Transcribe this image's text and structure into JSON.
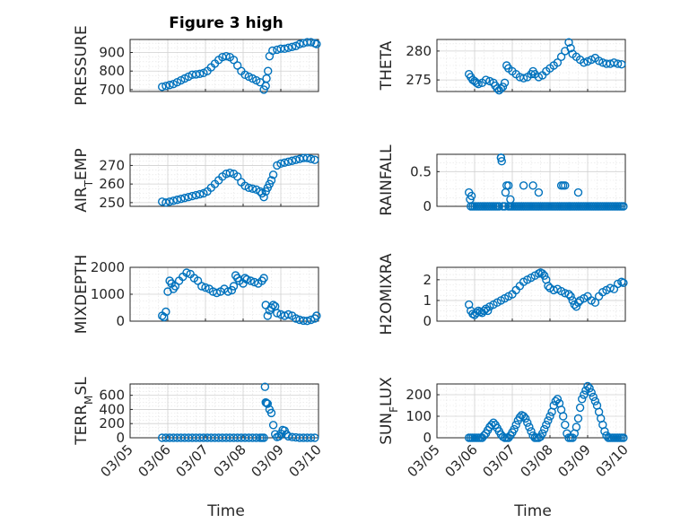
{
  "figure": {
    "title": "Figure 3 high",
    "time_label": "Time",
    "time_ticks": [
      "03/05",
      "03/06",
      "03/07",
      "03/08",
      "03/09",
      "03/10"
    ],
    "marker_color": "#0072BD"
  },
  "chart_data": [
    {
      "type": "scatter",
      "ylabel": "PRESSURE",
      "ylim": [
        690,
        970
      ],
      "yticks": [
        700,
        800,
        900
      ],
      "ytick_labels": [
        "700",
        "800",
        "900"
      ],
      "xlim": [
        0,
        5
      ],
      "x_tick_labels_shown": false,
      "x": [
        0.85,
        0.95,
        1.05,
        1.15,
        1.25,
        1.35,
        1.45,
        1.55,
        1.65,
        1.75,
        1.85,
        1.95,
        2.05,
        2.15,
        2.25,
        2.35,
        2.45,
        2.55,
        2.65,
        2.75,
        2.85,
        2.95,
        3.05,
        3.15,
        3.25,
        3.35,
        3.45,
        3.55,
        3.6,
        3.62,
        3.66,
        3.7,
        3.78,
        3.9,
        4.0,
        4.1,
        4.2,
        4.3,
        4.4,
        4.5,
        4.6,
        4.7,
        4.8,
        4.9,
        4.95
      ],
      "y": [
        715,
        720,
        725,
        730,
        740,
        750,
        760,
        770,
        780,
        782,
        785,
        790,
        800,
        820,
        840,
        860,
        875,
        880,
        875,
        860,
        830,
        800,
        780,
        770,
        760,
        750,
        740,
        700,
        720,
        760,
        800,
        880,
        910,
        915,
        920,
        920,
        925,
        930,
        935,
        945,
        950,
        955,
        955,
        950,
        945
      ]
    },
    {
      "type": "scatter",
      "ylabel": "THETA",
      "ylim": [
        273,
        282
      ],
      "yticks": [
        275,
        280
      ],
      "ytick_labels": [
        "275",
        "280"
      ],
      "xlim": [
        0,
        5
      ],
      "x_tick_labels_shown": false,
      "x": [
        0.85,
        0.9,
        0.95,
        1.0,
        1.05,
        1.1,
        1.2,
        1.3,
        1.4,
        1.5,
        1.55,
        1.6,
        1.65,
        1.7,
        1.75,
        1.8,
        1.85,
        1.9,
        2.0,
        2.1,
        2.2,
        2.3,
        2.4,
        2.5,
        2.55,
        2.6,
        2.7,
        2.8,
        2.9,
        3.0,
        3.1,
        3.2,
        3.3,
        3.4,
        3.5,
        3.55,
        3.6,
        3.7,
        3.8,
        3.9,
        4.0,
        4.1,
        4.2,
        4.3,
        4.4,
        4.5,
        4.6,
        4.7,
        4.8,
        4.9
      ],
      "y": [
        276,
        275.5,
        275,
        274.8,
        274.5,
        274.3,
        274.5,
        275,
        274.8,
        274.5,
        274,
        273.5,
        273.2,
        273.5,
        273.8,
        274.5,
        277.5,
        277,
        276.5,
        276,
        275.5,
        275.3,
        275.5,
        276,
        276.5,
        276,
        275.5,
        275.8,
        276.5,
        277,
        277.5,
        278,
        279,
        280,
        281.5,
        280.5,
        279.5,
        279,
        278.5,
        278,
        278.2,
        278.5,
        278.8,
        278.3,
        278,
        277.8,
        277.8,
        278,
        277.8,
        277.7
      ]
    },
    {
      "type": "scatter",
      "ylabel": "AIR_TEMP",
      "ylim": [
        248,
        276
      ],
      "yticks": [
        250,
        260,
        270
      ],
      "ytick_labels": [
        "250",
        "260",
        "270"
      ],
      "xlim": [
        0,
        5
      ],
      "x_tick_labels_shown": false,
      "x": [
        0.85,
        0.95,
        1.05,
        1.15,
        1.25,
        1.35,
        1.45,
        1.55,
        1.65,
        1.75,
        1.85,
        1.95,
        2.05,
        2.15,
        2.25,
        2.35,
        2.45,
        2.55,
        2.65,
        2.75,
        2.85,
        2.95,
        3.05,
        3.15,
        3.25,
        3.35,
        3.45,
        3.5,
        3.55,
        3.6,
        3.65,
        3.7,
        3.75,
        3.8,
        3.9,
        4.0,
        4.1,
        4.2,
        4.3,
        4.4,
        4.5,
        4.6,
        4.7,
        4.8,
        4.9
      ],
      "y": [
        250.5,
        250,
        250.5,
        251,
        251.5,
        252,
        252.5,
        253,
        253.5,
        254,
        254.5,
        255,
        256,
        258,
        260,
        262,
        264,
        265.5,
        266,
        265.5,
        264,
        261,
        259,
        258,
        257.5,
        257,
        256,
        255,
        253,
        256,
        258,
        260,
        262,
        265,
        270,
        271,
        271.5,
        272,
        272.5,
        273,
        273.5,
        274,
        274,
        273.5,
        273
      ]
    },
    {
      "type": "scatter",
      "ylabel": "RAINFALL",
      "ylim": [
        0,
        0.75
      ],
      "yticks": [
        0,
        0.5
      ],
      "ytick_labels": [
        "0",
        "0.5"
      ],
      "xlim": [
        0,
        5
      ],
      "x_tick_labels_shown": false,
      "x": [
        0.85,
        0.9,
        0.95,
        1.0,
        1.05,
        1.1,
        1.15,
        1.2,
        1.25,
        1.3,
        1.35,
        1.4,
        1.45,
        1.5,
        1.55,
        1.6,
        1.65,
        1.7,
        1.72,
        1.75,
        1.8,
        1.82,
        1.85,
        1.9,
        1.95,
        2.0,
        2.05,
        2.1,
        2.15,
        2.2,
        2.25,
        2.3,
        2.35,
        2.4,
        2.45,
        2.5,
        2.55,
        2.6,
        2.65,
        2.7,
        2.75,
        2.8,
        2.85,
        2.9,
        2.95,
        3.0,
        3.05,
        3.1,
        3.15,
        3.2,
        3.25,
        3.3,
        3.35,
        3.4,
        3.45,
        3.5,
        3.55,
        3.6,
        3.65,
        3.7,
        3.75,
        3.8,
        3.85,
        3.9,
        3.95,
        4.0,
        4.05,
        4.1,
        4.15,
        4.2,
        4.25,
        4.3,
        4.35,
        4.4,
        4.45,
        4.5,
        4.55,
        4.6,
        4.65,
        4.7,
        4.75,
        4.8,
        4.85,
        4.9,
        4.95,
        0.88,
        0.92,
        1.7,
        1.9,
        1.95,
        2.3,
        2.55,
        2.7,
        3.3,
        3.35,
        3.4,
        3.75
      ],
      "y": [
        0.2,
        0,
        0,
        0,
        0,
        0,
        0,
        0,
        0,
        0,
        0,
        0,
        0,
        0,
        0,
        0,
        0,
        0.7,
        0.65,
        0,
        0,
        0.2,
        0.3,
        0,
        0,
        0,
        0,
        0,
        0,
        0,
        0,
        0,
        0,
        0,
        0,
        0,
        0,
        0,
        0,
        0,
        0,
        0,
        0,
        0,
        0,
        0,
        0,
        0,
        0,
        0,
        0,
        0,
        0,
        0,
        0,
        0,
        0,
        0,
        0,
        0,
        0,
        0,
        0,
        0,
        0,
        0,
        0,
        0,
        0,
        0,
        0,
        0,
        0,
        0,
        0,
        0,
        0,
        0,
        0,
        0,
        0,
        0,
        0,
        0,
        0,
        0.1,
        0.15,
        0.7,
        0.3,
        0.1,
        0.3,
        0.3,
        0.2,
        0.3,
        0.3,
        0.3,
        0.2
      ]
    },
    {
      "type": "scatter",
      "ylabel": "MIXDEPTH",
      "ylim": [
        0,
        2000
      ],
      "yticks": [
        0,
        1000,
        2000
      ],
      "ytick_labels": [
        "0",
        "1000",
        "2000"
      ],
      "xlim": [
        0,
        5
      ],
      "x_tick_labels_shown": false,
      "x": [
        0.85,
        0.9,
        0.95,
        1.0,
        1.05,
        1.1,
        1.15,
        1.2,
        1.3,
        1.4,
        1.5,
        1.6,
        1.7,
        1.8,
        1.9,
        2.0,
        2.1,
        2.2,
        2.3,
        2.4,
        2.5,
        2.6,
        2.7,
        2.75,
        2.8,
        2.85,
        2.9,
        3.0,
        3.05,
        3.1,
        3.2,
        3.3,
        3.4,
        3.5,
        3.55,
        3.6,
        3.65,
        3.7,
        3.75,
        3.8,
        3.85,
        3.9,
        4.0,
        4.1,
        4.2,
        4.3,
        4.4,
        4.5,
        4.6,
        4.7,
        4.8,
        4.9,
        4.95
      ],
      "y": [
        200,
        150,
        350,
        1100,
        1500,
        1400,
        1200,
        1300,
        1500,
        1650,
        1800,
        1750,
        1600,
        1500,
        1300,
        1250,
        1200,
        1100,
        1050,
        1100,
        1200,
        1100,
        1150,
        1300,
        1700,
        1600,
        1500,
        1400,
        1600,
        1550,
        1500,
        1450,
        1400,
        1500,
        1600,
        600,
        200,
        400,
        500,
        600,
        550,
        300,
        250,
        200,
        250,
        200,
        100,
        50,
        20,
        10,
        50,
        100,
        200
      ]
    },
    {
      "type": "scatter",
      "ylabel": "H2OMIXRA",
      "ylim": [
        0,
        2.6
      ],
      "yticks": [
        0,
        1,
        2
      ],
      "ytick_labels": [
        "0",
        "1",
        "2"
      ],
      "xlim": [
        0,
        5
      ],
      "x_tick_labels_shown": false,
      "x": [
        0.85,
        0.9,
        0.95,
        1.0,
        1.05,
        1.1,
        1.15,
        1.2,
        1.25,
        1.3,
        1.35,
        1.4,
        1.5,
        1.6,
        1.7,
        1.8,
        1.9,
        2.0,
        2.1,
        2.2,
        2.3,
        2.4,
        2.5,
        2.6,
        2.7,
        2.75,
        2.8,
        2.85,
        2.9,
        2.95,
        3.0,
        3.1,
        3.2,
        3.3,
        3.4,
        3.5,
        3.55,
        3.6,
        3.65,
        3.7,
        3.75,
        3.8,
        3.9,
        4.0,
        4.1,
        4.2,
        4.3,
        4.4,
        4.5,
        4.6,
        4.7,
        4.8,
        4.9,
        4.95
      ],
      "y": [
        0.8,
        0.5,
        0.35,
        0.3,
        0.4,
        0.5,
        0.45,
        0.4,
        0.5,
        0.6,
        0.5,
        0.7,
        0.8,
        0.9,
        1.0,
        1.1,
        1.2,
        1.3,
        1.5,
        1.7,
        1.9,
        2.0,
        2.1,
        2.2,
        2.3,
        2.35,
        2.3,
        2.2,
        2.0,
        1.7,
        1.6,
        1.5,
        1.55,
        1.45,
        1.35,
        1.3,
        1.2,
        1.0,
        0.8,
        0.7,
        0.9,
        1.0,
        1.1,
        1.2,
        1.0,
        0.9,
        1.2,
        1.4,
        1.5,
        1.6,
        1.55,
        1.8,
        1.9,
        1.85
      ]
    },
    {
      "type": "scatter",
      "ylabel": "TERR_MSL",
      "ylim": [
        0,
        760
      ],
      "yticks": [
        0,
        200,
        400,
        600
      ],
      "ytick_labels": [
        "0",
        "200",
        "400",
        "600"
      ],
      "xlim": [
        0,
        5
      ],
      "x_tick_labels_shown": true,
      "x": [
        0.85,
        0.95,
        1.05,
        1.15,
        1.25,
        1.35,
        1.45,
        1.55,
        1.65,
        1.75,
        1.85,
        1.95,
        2.05,
        2.15,
        2.25,
        2.35,
        2.45,
        2.55,
        2.65,
        2.75,
        2.85,
        2.95,
        3.05,
        3.15,
        3.25,
        3.35,
        3.45,
        3.5,
        3.55,
        3.58,
        3.6,
        3.62,
        3.65,
        3.7,
        3.75,
        3.8,
        3.85,
        3.9,
        3.95,
        4.0,
        4.05,
        4.1,
        4.15,
        4.2,
        4.3,
        4.4,
        4.5,
        4.6,
        4.7,
        4.8,
        4.9
      ],
      "y": [
        0,
        0,
        0,
        0,
        0,
        0,
        0,
        0,
        0,
        0,
        0,
        0,
        0,
        0,
        0,
        0,
        0,
        0,
        0,
        0,
        0,
        0,
        0,
        0,
        0,
        0,
        0,
        0,
        0,
        720,
        500,
        490,
        480,
        400,
        350,
        180,
        50,
        10,
        20,
        60,
        110,
        100,
        50,
        20,
        10,
        5,
        0,
        0,
        0,
        0,
        0
      ]
    },
    {
      "type": "scatter",
      "ylabel": "SUN_FLUX",
      "ylim": [
        0,
        250
      ],
      "yticks": [
        0,
        100,
        200
      ],
      "ytick_labels": [
        "0",
        "100",
        "200"
      ],
      "xlim": [
        0,
        5
      ],
      "x_tick_labels_shown": true,
      "x": [
        0.85,
        0.9,
        0.95,
        1.0,
        1.05,
        1.1,
        1.15,
        1.2,
        1.25,
        1.3,
        1.35,
        1.4,
        1.45,
        1.5,
        1.55,
        1.6,
        1.65,
        1.7,
        1.75,
        1.8,
        1.85,
        1.9,
        1.95,
        2.0,
        2.05,
        2.1,
        2.15,
        2.2,
        2.25,
        2.3,
        2.35,
        2.4,
        2.45,
        2.5,
        2.55,
        2.6,
        2.65,
        2.7,
        2.75,
        2.8,
        2.85,
        2.9,
        2.95,
        3.0,
        3.05,
        3.1,
        3.15,
        3.2,
        3.25,
        3.3,
        3.35,
        3.4,
        3.45,
        3.5,
        3.55,
        3.6,
        3.65,
        3.7,
        3.75,
        3.8,
        3.85,
        3.9,
        3.95,
        4.0,
        4.05,
        4.1,
        4.15,
        4.2,
        4.25,
        4.3,
        4.35,
        4.4,
        4.45,
        4.5,
        4.55,
        4.6,
        4.65,
        4.7,
        4.75,
        4.8,
        4.85,
        4.9,
        4.95
      ],
      "y": [
        0,
        0,
        0,
        0,
        0,
        0,
        0,
        0,
        10,
        20,
        35,
        50,
        60,
        70,
        60,
        45,
        30,
        15,
        5,
        0,
        0,
        0,
        10,
        25,
        40,
        60,
        80,
        95,
        105,
        100,
        90,
        70,
        50,
        30,
        10,
        0,
        0,
        0,
        5,
        20,
        40,
        60,
        80,
        100,
        120,
        150,
        170,
        180,
        160,
        130,
        100,
        60,
        20,
        0,
        0,
        0,
        20,
        50,
        90,
        140,
        180,
        200,
        220,
        240,
        230,
        210,
        190,
        170,
        150,
        120,
        90,
        60,
        30,
        10,
        0,
        0,
        0,
        0,
        0,
        0,
        0,
        0,
        0
      ]
    }
  ]
}
